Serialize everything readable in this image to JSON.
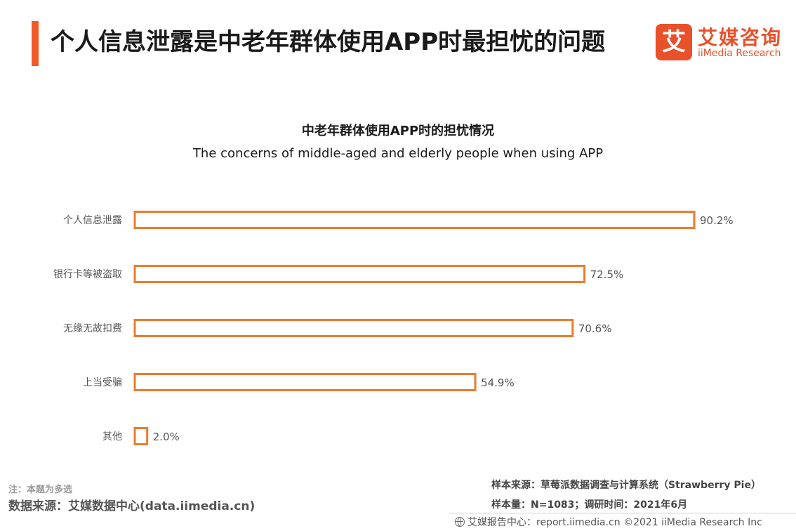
{
  "header": {
    "title": "个人信息泄露是中老年群体使用APP时最担忧的问题",
    "logo_cn": "艾媒咨询",
    "logo_en": "iiMedia Research",
    "logo_mark": "艾"
  },
  "chart_data": {
    "type": "bar",
    "orientation": "horizontal",
    "title": "中老年群体使用APP时的担忧情况",
    "subtitle": "The concerns of middle-aged and elderly people when using APP",
    "categories": [
      "个人信息泄露",
      "银行卡等被盗取",
      "无缘无故扣费",
      "上当受骗",
      "其他"
    ],
    "values": [
      90.2,
      72.5,
      70.6,
      54.9,
      2.0
    ],
    "value_labels": [
      "90.2%",
      "72.5%",
      "70.6%",
      "54.9%",
      "2.0%"
    ],
    "unit": "%",
    "xlim": [
      0,
      100
    ],
    "grid": false,
    "legend": "none",
    "bar_style": "outline",
    "bar_color": "#e87d2f"
  },
  "notes": {
    "note": "注：本题为多选",
    "source_left": "数据来源：艾媒数据中心(data.iimedia.cn)",
    "sample_source": "样本来源：草莓派数据调查与计算系统（Strawberry Pie）",
    "sample_size": "样本量：N=1083；调研时间：2021年6月",
    "footer": "艾媒报告中心：report.iimedia.cn  ©2021  iiMedia Research  Inc"
  }
}
